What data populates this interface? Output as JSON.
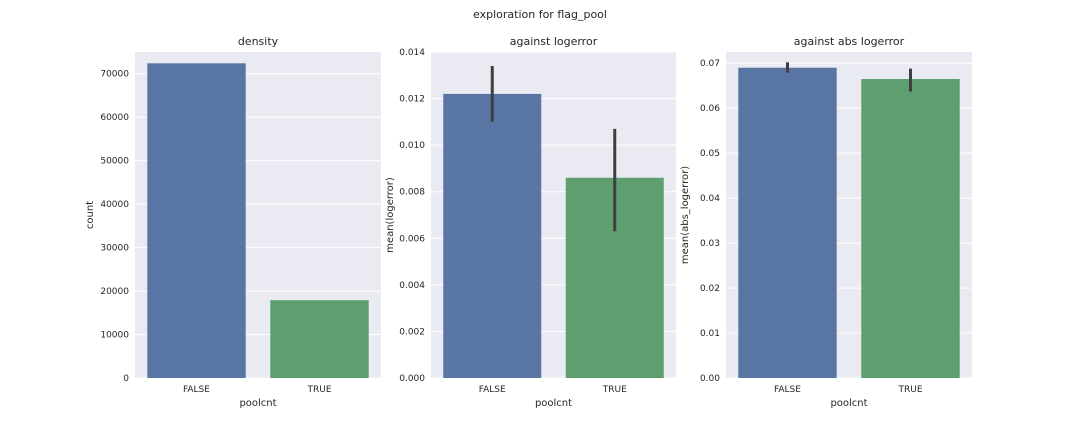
{
  "figure": {
    "suptitle": "exploration for flag_pool",
    "background": "#ffffff",
    "panel_background": "#eaeaf2",
    "grid_color": "#ffffff",
    "text_color": "#262626",
    "errorbar_color": "#3f3f3f"
  },
  "chart_data": [
    {
      "type": "bar",
      "title": "density",
      "xlabel": "poolcnt",
      "ylabel": "count",
      "categories": [
        "FALSE",
        "TRUE"
      ],
      "values": [
        72400,
        17900
      ],
      "colors": [
        "#5875a4",
        "#5f9e6e"
      ],
      "ylim": [
        0,
        75000
      ],
      "yticks": [
        0,
        10000,
        20000,
        30000,
        40000,
        50000,
        60000,
        70000
      ],
      "ytick_labels": [
        "0",
        "10000",
        "20000",
        "30000",
        "40000",
        "50000",
        "60000",
        "70000"
      ],
      "grid": true
    },
    {
      "type": "bar",
      "title": "against logerror",
      "xlabel": "poolcnt",
      "ylabel": "mean(logerror)",
      "categories": [
        "FALSE",
        "TRUE"
      ],
      "values": [
        0.0122,
        0.0086
      ],
      "errors": [
        [
          0.011,
          0.0134
        ],
        [
          0.0063,
          0.0107
        ]
      ],
      "colors": [
        "#5875a4",
        "#5f9e6e"
      ],
      "ylim": [
        0,
        0.014
      ],
      "yticks": [
        0,
        0.002,
        0.004,
        0.006,
        0.008,
        0.01,
        0.012,
        0.014
      ],
      "ytick_labels": [
        "0.000",
        "0.002",
        "0.004",
        "0.006",
        "0.008",
        "0.010",
        "0.012",
        "0.014"
      ],
      "grid": true
    },
    {
      "type": "bar",
      "title": "against abs logerror",
      "xlabel": "poolcnt",
      "ylabel": "mean(abs_logerror)",
      "categories": [
        "FALSE",
        "TRUE"
      ],
      "values": [
        0.069,
        0.0665
      ],
      "errors": [
        [
          0.0679,
          0.0702
        ],
        [
          0.0637,
          0.0688
        ]
      ],
      "colors": [
        "#5875a4",
        "#5f9e6e"
      ],
      "ylim": [
        0,
        0.0725
      ],
      "yticks": [
        0,
        0.01,
        0.02,
        0.03,
        0.04,
        0.05,
        0.06,
        0.07
      ],
      "ytick_labels": [
        "0.00",
        "0.01",
        "0.02",
        "0.03",
        "0.04",
        "0.05",
        "0.06",
        "0.07"
      ],
      "grid": true
    }
  ]
}
